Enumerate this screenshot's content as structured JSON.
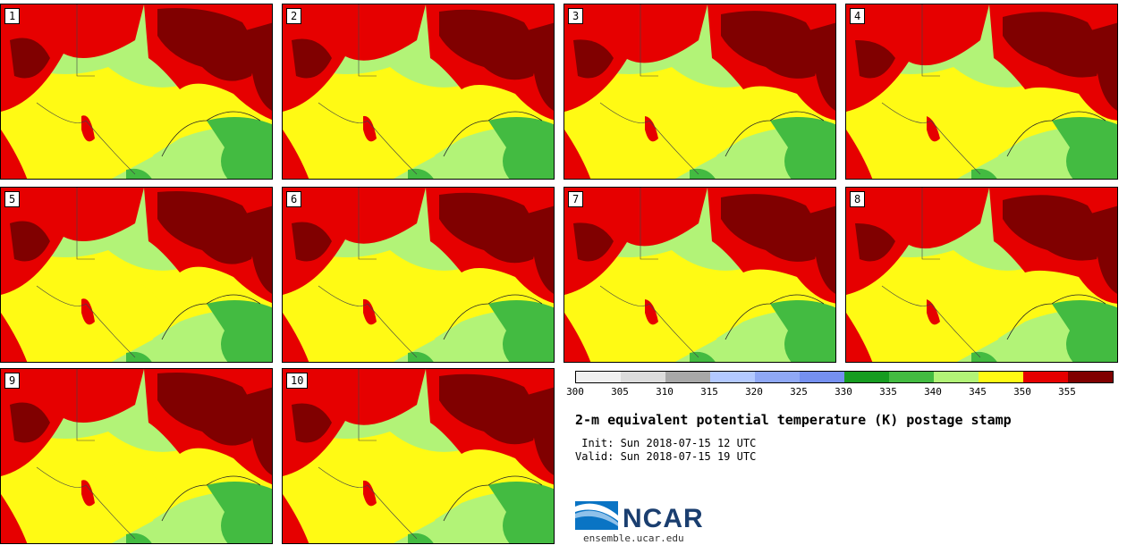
{
  "panels": [
    "1",
    "2",
    "3",
    "4",
    "5",
    "6",
    "7",
    "8",
    "9",
    "10"
  ],
  "colorbar": {
    "colors": [
      "#f0f0f0",
      "#dcdcdc",
      "#a8a8a8",
      "#b3c9ff",
      "#8fa8f5",
      "#7590f0",
      "#169c20",
      "#43bb41",
      "#b2f377",
      "#fffa14",
      "#e60000",
      "#800000"
    ],
    "ticks": [
      "300",
      "305",
      "310",
      "315",
      "320",
      "325",
      "330",
      "335",
      "340",
      "345",
      "350",
      "355"
    ]
  },
  "title": "2-m equivalent potential temperature (K) postage stamp",
  "init": " Init: Sun 2018-07-15 12 UTC",
  "valid": "Valid: Sun 2018-07-15 19 UTC",
  "logo": {
    "name": "NCAR",
    "url": "ensemble.ucar.edu"
  }
}
